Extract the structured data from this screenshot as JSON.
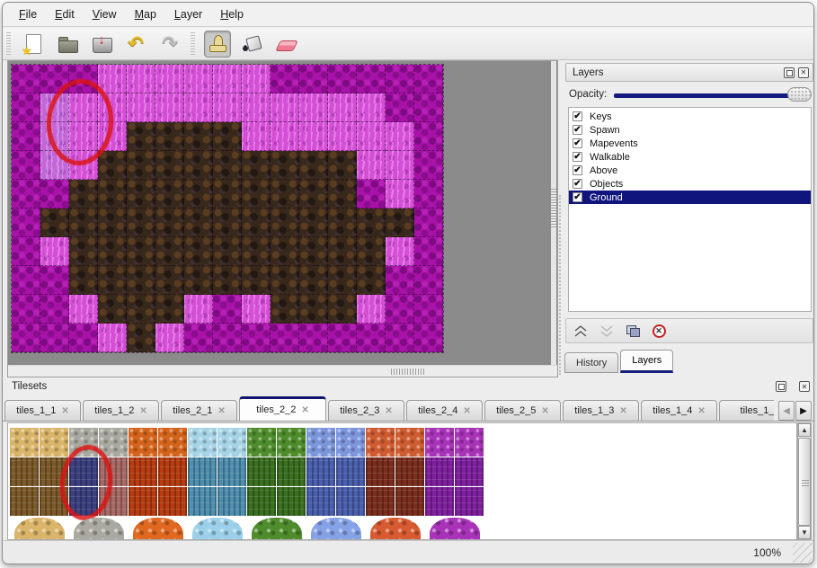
{
  "menu": {
    "items": [
      "File",
      "Edit",
      "View",
      "Map",
      "Layer",
      "Help"
    ]
  },
  "toolbar": {
    "groups": [
      [
        {
          "icon": "new-file-icon"
        },
        {
          "icon": "open-file-icon"
        },
        {
          "icon": "save-file-icon"
        },
        {
          "icon": "undo-icon",
          "glyph": "↶"
        },
        {
          "icon": "redo-icon",
          "glyph": "↷"
        }
      ],
      [
        {
          "icon": "stamp-tool-icon",
          "active": true
        },
        {
          "icon": "fill-tool-icon"
        },
        {
          "icon": "eraser-tool-icon"
        },
        {
          "icon": "rect-select-tool-icon"
        }
      ]
    ]
  },
  "map": {
    "tile_colors": {
      "M": "#a912a9",
      "P": "#d44fd6",
      "L": "#c266d8",
      "B": "#38281c"
    },
    "tile_legend": {
      "M": "dark-magenta",
      "P": "bright-pink",
      "L": "lavender",
      "B": "dark-brown"
    },
    "rows": [
      "MMMPPPPPPMMMMMM",
      "MLPPPPPPPPPPPMM",
      "MLPPBBBBPPPPPPM",
      "MLPBBBBBBBBBPPM",
      "MMBBBBBBBBBBMPM",
      "MBBBBBBBBBBBBBM",
      "MPBBBBBBBBBBBPM",
      "MMBBBBBBBBBBBMM",
      "MMPBBBPMPBBBPMM",
      "MMMPBPMMMMMMMMM"
    ],
    "annotation_color": "#da1212"
  },
  "layers_panel": {
    "title": "Layers",
    "opacity_label": "Opacity:",
    "check_glyph": "✔",
    "layers": [
      {
        "label": "Keys",
        "checked": true
      },
      {
        "label": "Spawn",
        "checked": true
      },
      {
        "label": "Mapevents",
        "checked": true
      },
      {
        "label": "Walkable",
        "checked": true
      },
      {
        "label": "Above",
        "checked": true
      },
      {
        "label": "Objects",
        "checked": true
      },
      {
        "label": "Ground",
        "checked": true,
        "selected": true
      }
    ],
    "selection_color": "#10157d",
    "slider_color": "#141a80",
    "tabs": [
      {
        "label": "History",
        "active": false
      },
      {
        "label": "Layers",
        "active": true
      }
    ]
  },
  "tilesets_panel": {
    "title": "Tilesets",
    "close_glyph": "✕",
    "tabs": [
      {
        "label": "tiles_1_1"
      },
      {
        "label": "tiles_1_2"
      },
      {
        "label": "tiles_2_1"
      },
      {
        "label": "tiles_2_2",
        "active": true
      },
      {
        "label": "tiles_2_3"
      },
      {
        "label": "tiles_2_4"
      },
      {
        "label": "tiles_2_5"
      },
      {
        "label": "tiles_1_3"
      },
      {
        "label": "tiles_1_4"
      },
      {
        "label": "tiles_1_",
        "truncated": true
      }
    ],
    "scroll_left_glyph": "◀",
    "scroll_right_glyph": "▶",
    "scroll_up_glyph": "▲",
    "scroll_down_glyph": "▼",
    "palette": {
      "columns": [
        {
          "top": "#d9b469",
          "front": "#7c5a2a"
        },
        {
          "top": "#d9b469",
          "front": "#7c5a2a"
        },
        {
          "top": "#a9a9a1",
          "front": "#3c4080"
        },
        {
          "top": "#a9a9a1",
          "front": "#a86a66"
        },
        {
          "top": "#d4641c",
          "front": "#b83c10"
        },
        {
          "top": "#d4641c",
          "front": "#b83c10"
        },
        {
          "top": "#a6d4e6",
          "front": "#4f90b0"
        },
        {
          "top": "#a6d4e6",
          "front": "#4f90b0"
        },
        {
          "top": "#4f8c2c",
          "front": "#3a7020"
        },
        {
          "top": "#4f8c2c",
          "front": "#3a7020"
        },
        {
          "top": "#7c96dc",
          "front": "#4a5fae"
        },
        {
          "top": "#7c96dc",
          "front": "#4a5fae"
        },
        {
          "top": "#cf5c30",
          "front": "#7c2e1e"
        },
        {
          "top": "#cf5c30",
          "front": "#7c2e1e"
        },
        {
          "top": "#a833b8",
          "front": "#8020a0"
        },
        {
          "top": "#a833b8",
          "front": "#8020a0"
        }
      ],
      "bushes": [
        "#d9b469",
        "#a9a9a1",
        "#e06820",
        "#9cd0ea",
        "#4f8c2c",
        "#86a2e6",
        "#d85a30",
        "#a833b8"
      ]
    }
  },
  "status_bar": {
    "zoom_level": "100%"
  }
}
